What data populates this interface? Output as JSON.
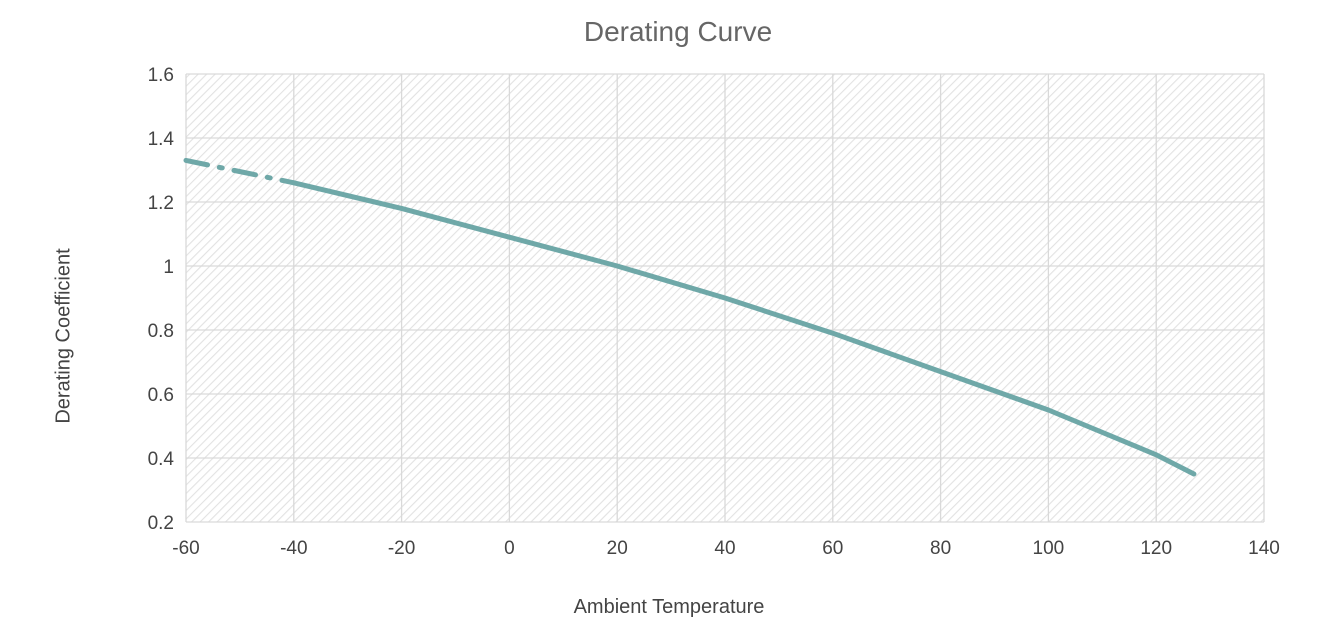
{
  "chart_data": {
    "type": "line",
    "title": "Derating Curve",
    "xlabel": "Ambient Temperature",
    "ylabel": "Derating Coefficient",
    "xlim": [
      -60,
      140
    ],
    "ylim": [
      0.2,
      1.6
    ],
    "x_ticks": [
      "-60",
      "-40",
      "-20",
      "0",
      "20",
      "40",
      "60",
      "80",
      "100",
      "120",
      "140"
    ],
    "y_ticks": [
      "0.2",
      "0.4",
      "0.6",
      "0.8",
      "1",
      "1.2",
      "1.4",
      "1.6"
    ],
    "grid": true,
    "series": [
      {
        "style": "dash-dot",
        "color": "#6fa8a8",
        "x": [
          -60,
          -40
        ],
        "y": [
          1.33,
          1.26
        ]
      },
      {
        "style": "solid",
        "color": "#6fa8a8",
        "x": [
          -40,
          -20,
          0,
          20,
          40,
          60,
          80,
          100,
          120,
          127
        ],
        "y": [
          1.26,
          1.18,
          1.09,
          1.0,
          0.9,
          0.79,
          0.67,
          0.55,
          0.41,
          0.35
        ]
      }
    ]
  }
}
